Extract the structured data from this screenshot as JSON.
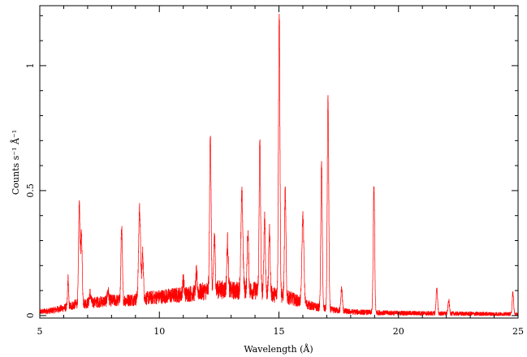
{
  "chart_data": {
    "type": "line",
    "title": "",
    "xlabel": "Wavelength (Å)",
    "ylabel": "Counts s⁻¹ Å⁻¹",
    "xlim": [
      5,
      25
    ],
    "ylim": [
      -0.01,
      1.24
    ],
    "x_ticks": [
      5,
      10,
      15,
      20,
      25
    ],
    "y_ticks": [
      0,
      0.5,
      1
    ],
    "grid": false,
    "line_color": "#ff0000",
    "continuum": [
      [
        5.0,
        0.015
      ],
      [
        5.5,
        0.02
      ],
      [
        6.0,
        0.03
      ],
      [
        6.5,
        0.045
      ],
      [
        7.0,
        0.05
      ],
      [
        7.5,
        0.055
      ],
      [
        8.0,
        0.06
      ],
      [
        8.5,
        0.06
      ],
      [
        9.0,
        0.065
      ],
      [
        9.5,
        0.07
      ],
      [
        10.0,
        0.075
      ],
      [
        10.5,
        0.08
      ],
      [
        11.0,
        0.085
      ],
      [
        11.5,
        0.09
      ],
      [
        12.0,
        0.1
      ],
      [
        12.5,
        0.105
      ],
      [
        13.0,
        0.1
      ],
      [
        13.5,
        0.1
      ],
      [
        14.0,
        0.1
      ],
      [
        14.5,
        0.09
      ],
      [
        15.0,
        0.08
      ],
      [
        15.5,
        0.07
      ],
      [
        16.0,
        0.05
      ],
      [
        16.5,
        0.035
      ],
      [
        17.0,
        0.025
      ],
      [
        17.5,
        0.02
      ],
      [
        18.0,
        0.015
      ],
      [
        19.0,
        0.012
      ],
      [
        20.0,
        0.01
      ],
      [
        22.0,
        0.008
      ],
      [
        25.0,
        0.005
      ]
    ],
    "lines": [
      {
        "x": 6.18,
        "y": 0.15,
        "w": 0.02
      },
      {
        "x": 6.65,
        "y": 0.45,
        "w": 0.03
      },
      {
        "x": 6.74,
        "y": 0.33,
        "w": 0.03
      },
      {
        "x": 7.1,
        "y": 0.09,
        "w": 0.03
      },
      {
        "x": 7.85,
        "y": 0.1,
        "w": 0.03
      },
      {
        "x": 8.42,
        "y": 0.35,
        "w": 0.03
      },
      {
        "x": 9.17,
        "y": 0.43,
        "w": 0.04
      },
      {
        "x": 9.3,
        "y": 0.25,
        "w": 0.03
      },
      {
        "x": 11.0,
        "y": 0.14,
        "w": 0.03
      },
      {
        "x": 11.55,
        "y": 0.17,
        "w": 0.03
      },
      {
        "x": 12.13,
        "y": 0.74,
        "w": 0.03
      },
      {
        "x": 12.3,
        "y": 0.32,
        "w": 0.03
      },
      {
        "x": 12.85,
        "y": 0.3,
        "w": 0.03
      },
      {
        "x": 13.45,
        "y": 0.48,
        "w": 0.04
      },
      {
        "x": 13.7,
        "y": 0.33,
        "w": 0.03
      },
      {
        "x": 14.2,
        "y": 0.69,
        "w": 0.03
      },
      {
        "x": 14.4,
        "y": 0.4,
        "w": 0.03
      },
      {
        "x": 14.6,
        "y": 0.34,
        "w": 0.03
      },
      {
        "x": 15.01,
        "y": 1.22,
        "w": 0.03
      },
      {
        "x": 15.26,
        "y": 0.5,
        "w": 0.03
      },
      {
        "x": 16.0,
        "y": 0.4,
        "w": 0.04
      },
      {
        "x": 16.78,
        "y": 0.61,
        "w": 0.03
      },
      {
        "x": 17.05,
        "y": 0.87,
        "w": 0.03
      },
      {
        "x": 17.62,
        "y": 0.11,
        "w": 0.03
      },
      {
        "x": 18.97,
        "y": 0.52,
        "w": 0.03
      },
      {
        "x": 21.6,
        "y": 0.11,
        "w": 0.03
      },
      {
        "x": 22.1,
        "y": 0.06,
        "w": 0.03
      },
      {
        "x": 24.78,
        "y": 0.09,
        "w": 0.03
      }
    ]
  }
}
